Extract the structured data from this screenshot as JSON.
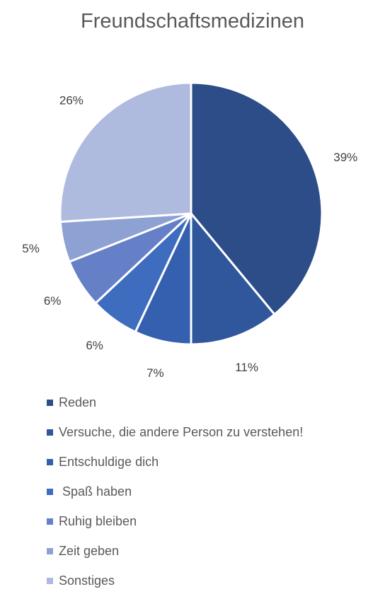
{
  "chart_data": {
    "type": "pie",
    "title": "Freundschaftsmedizinen",
    "legend_position": "bottom",
    "slices": [
      {
        "label": "Reden",
        "value": 39,
        "display": "39%",
        "color": "#2C4D87"
      },
      {
        "label": "Versuche, die andere Person zu verstehen!",
        "value": 11,
        "display": "11%",
        "color": "#30569C"
      },
      {
        "label": "Entschuldige dich",
        "value": 7,
        "display": "7%",
        "color": "#3460AF"
      },
      {
        "label": " Spaß haben",
        "value": 6,
        "display": "6%",
        "color": "#3E6CBF"
      },
      {
        "label": "Ruhig bleiben",
        "value": 6,
        "display": "6%",
        "color": "#6680C8"
      },
      {
        "label": "Zeit geben",
        "value": 5,
        "display": "5%",
        "color": "#8EA1D3"
      },
      {
        "label": "Sonstiges",
        "value": 26,
        "display": "26%",
        "color": "#AFBADF"
      }
    ]
  }
}
